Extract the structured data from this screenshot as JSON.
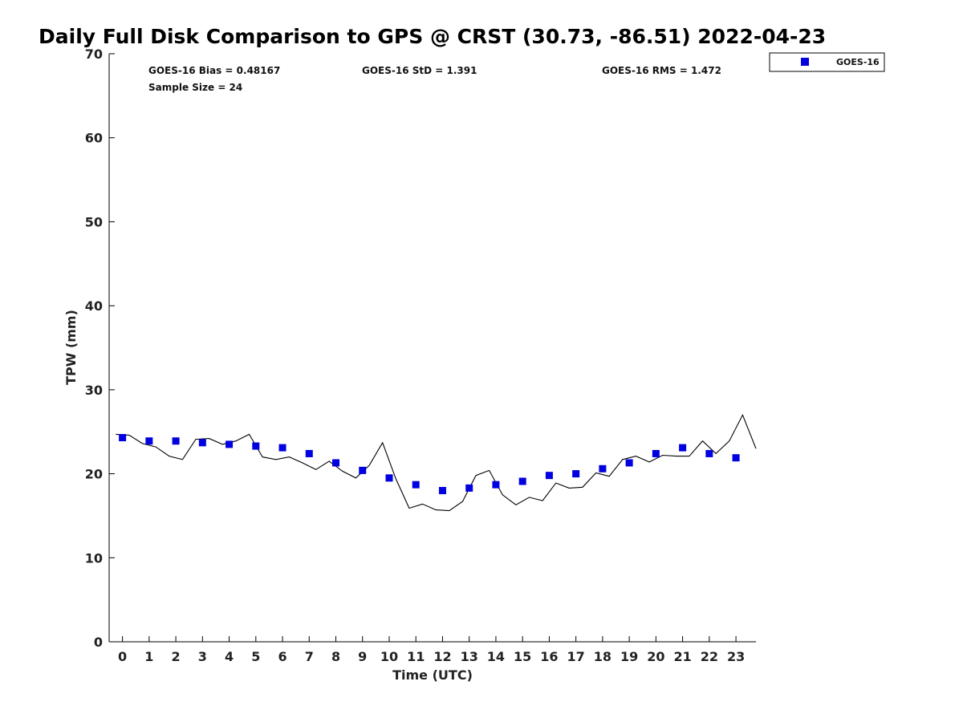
{
  "chart_data": {
    "type": "scatter",
    "title": "Daily Full Disk Comparison to GPS @ CRST (30.73, -86.51) 2022-04-23",
    "xlabel": "Time (UTC)",
    "ylabel": "TPW (mm)",
    "xlim": [
      -0.5,
      23.75
    ],
    "ylim": [
      0,
      70
    ],
    "x_ticks": [
      "0",
      "1",
      "2",
      "3",
      "4",
      "5",
      "6",
      "7",
      "8",
      "9",
      "10",
      "11",
      "12",
      "13",
      "14",
      "15",
      "16",
      "17",
      "18",
      "19",
      "20",
      "21",
      "22",
      "23"
    ],
    "y_ticks": [
      "0",
      "10",
      "20",
      "30",
      "40",
      "50",
      "60",
      "70"
    ],
    "grid": false,
    "legend_position": "top-right, outside plot",
    "stats": {
      "bias": "GOES-16 Bias = 0.48167",
      "std": "GOES-16 StD = 1.391",
      "rms": "GOES-16 RMS = 1.472",
      "sample": "Sample Size = 24"
    },
    "series": [
      {
        "name": "GOES-16",
        "kind": "markers",
        "marker": "square",
        "color": "#0000e0",
        "x": [
          0,
          1,
          2,
          3,
          4,
          5,
          6,
          7,
          8,
          9,
          10,
          11,
          12,
          13,
          14,
          15,
          16,
          17,
          18,
          19,
          20,
          21,
          22,
          23
        ],
        "y": [
          24.3,
          23.9,
          23.9,
          23.7,
          23.5,
          23.3,
          23.1,
          22.4,
          21.3,
          20.4,
          19.5,
          18.7,
          18.0,
          18.3,
          18.7,
          19.1,
          19.8,
          20.0,
          20.6,
          21.3,
          22.4,
          23.1,
          22.4,
          21.9
        ]
      },
      {
        "kind": "line",
        "color": "#000000",
        "x": [
          -0.25,
          0.25,
          0.75,
          1.25,
          1.75,
          2.25,
          2.75,
          3.25,
          3.75,
          4.25,
          4.75,
          5.25,
          5.75,
          6.25,
          6.75,
          7.25,
          7.75,
          8.25,
          8.75,
          9.25,
          9.75,
          10.25,
          10.75,
          11.25,
          11.75,
          12.25,
          12.75,
          13.25,
          13.75,
          14.25,
          14.75,
          15.25,
          15.75,
          16.25,
          16.75,
          17.25,
          17.75,
          18.25,
          18.75,
          19.25,
          19.75,
          20.25,
          20.75,
          21.25,
          21.75,
          22.25,
          22.75,
          23.25,
          23.75
        ],
        "y": [
          24.7,
          24.6,
          23.6,
          23.2,
          22.1,
          21.7,
          24.1,
          24.2,
          23.5,
          23.9,
          24.7,
          22.0,
          21.7,
          22.0,
          21.3,
          20.5,
          21.5,
          20.3,
          19.5,
          21.0,
          23.7,
          19.4,
          15.9,
          16.4,
          15.7,
          15.6,
          16.7,
          19.8,
          20.4,
          17.5,
          16.3,
          17.2,
          16.8,
          18.9,
          18.3,
          18.4,
          20.1,
          19.7,
          21.7,
          22.1,
          21.4,
          22.2,
          22.1,
          22.1,
          23.9,
          22.4,
          23.9,
          27.0,
          23.0
        ]
      }
    ]
  }
}
